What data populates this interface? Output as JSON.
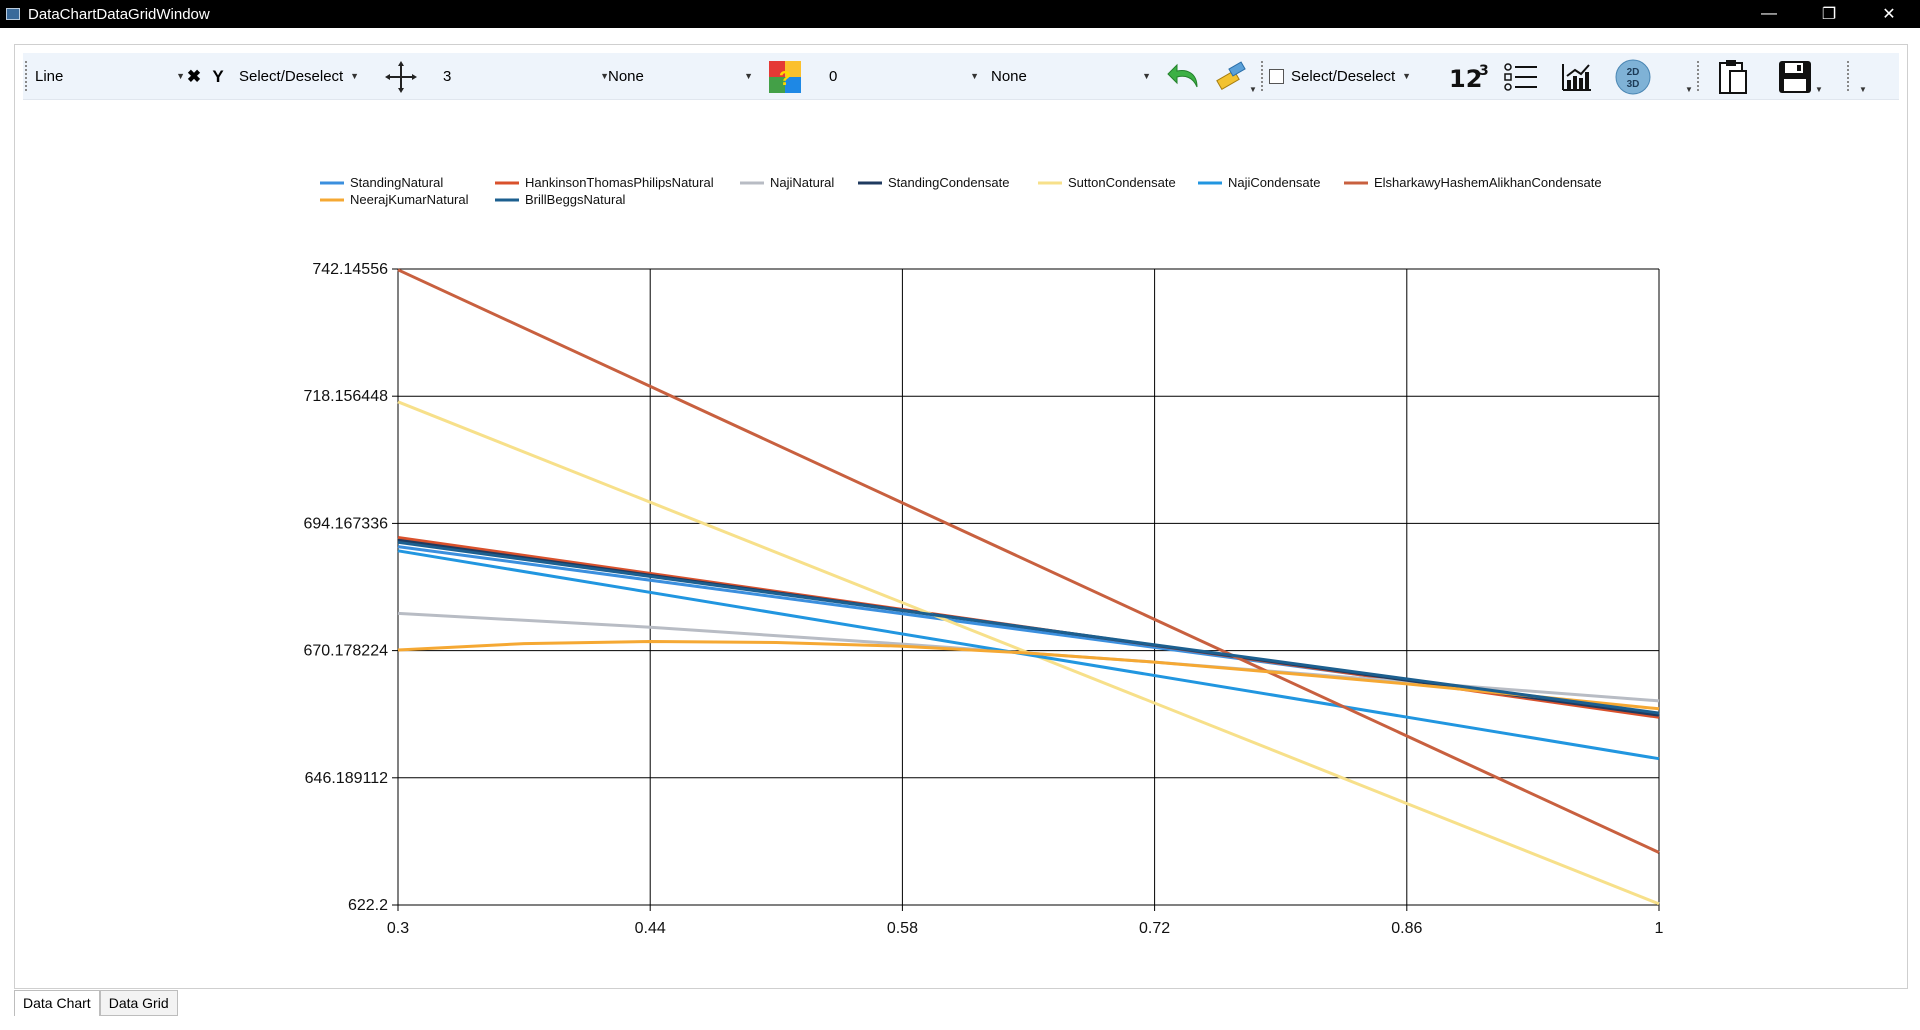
{
  "window": {
    "title": "DataChartDataGridWindow"
  },
  "toolbar": {
    "chart_type": "Line",
    "axis_select": "Select/Deselect",
    "marker_size": "3",
    "marker_style": "None",
    "color_value": "0",
    "fill_style": "None",
    "legend_toggle": "Select/Deselect",
    "icons": [
      "grip-icon",
      "x-axis-icon",
      "y-axis-icon",
      "crosshair-icon",
      "help-color-icon",
      "undo-icon",
      "paint-brush-icon",
      "data-labels-icon",
      "legend-icon",
      "chart-area-icon",
      "2d-3d-icon",
      "clipboard-icon",
      "save-icon"
    ]
  },
  "tabs": [
    {
      "label": "Data Chart",
      "active": true
    },
    {
      "label": "Data Grid",
      "active": false
    }
  ],
  "chart_data": {
    "type": "line",
    "xlim": [
      0.3,
      1
    ],
    "ylim": [
      622.2,
      742.14556
    ],
    "x_ticks": [
      "0.3",
      "0.44",
      "0.58",
      "0.72",
      "0.86",
      "1"
    ],
    "y_ticks": [
      "622.2",
      "646.189112",
      "670.178224",
      "694.167336",
      "718.156448",
      "742.14556"
    ],
    "grid": true,
    "legend_position": "top",
    "series": [
      {
        "name": "StandingNatural",
        "color": "#3b8fde",
        "x": [
          0.3,
          1
        ],
        "y": [
          689.8,
          658.1
        ]
      },
      {
        "name": "HankinsonThomasPhilipsNatural",
        "color": "#d9512c",
        "x": [
          0.3,
          1
        ],
        "y": [
          691.5,
          657.6
        ]
      },
      {
        "name": "NajiNatural",
        "color": "#b8bcc4",
        "x": [
          0.3,
          0.44,
          0.58,
          0.72,
          0.86,
          1
        ],
        "y": [
          677.2,
          674.6,
          671.4,
          668.0,
          664.3,
          660.7
        ]
      },
      {
        "name": "StandingCondensate",
        "color": "#1f3a5f",
        "x": [
          0.3,
          1
        ],
        "y": [
          691.0,
          658.0
        ]
      },
      {
        "name": "SuttonCondensate",
        "color": "#f7e08a",
        "x": [
          0.3,
          1
        ],
        "y": [
          717.1,
          622.4
        ]
      },
      {
        "name": "NajiCondensate",
        "color": "#2196e0",
        "x": [
          0.3,
          1
        ],
        "y": [
          689.0,
          649.8
        ]
      },
      {
        "name": "ElsharkawyHashemAlikhanCondensate",
        "color": "#c8603f",
        "x": [
          0.3,
          1
        ],
        "y": [
          742.0,
          632.1
        ]
      },
      {
        "name": "NeerajKumarNatural",
        "color": "#f5a833",
        "x": [
          0.3,
          0.37,
          0.44,
          0.51,
          0.58,
          0.65,
          0.72,
          0.79,
          0.86,
          0.93,
          1
        ],
        "y": [
          670.3,
          671.5,
          671.9,
          671.7,
          671.0,
          669.7,
          668.0,
          666.0,
          663.9,
          661.6,
          659.2
        ]
      },
      {
        "name": "BrillBeggsNatural",
        "color": "#1c5f8f",
        "x": [
          0.3,
          1
        ],
        "y": [
          690.6,
          658.4
        ]
      }
    ]
  }
}
